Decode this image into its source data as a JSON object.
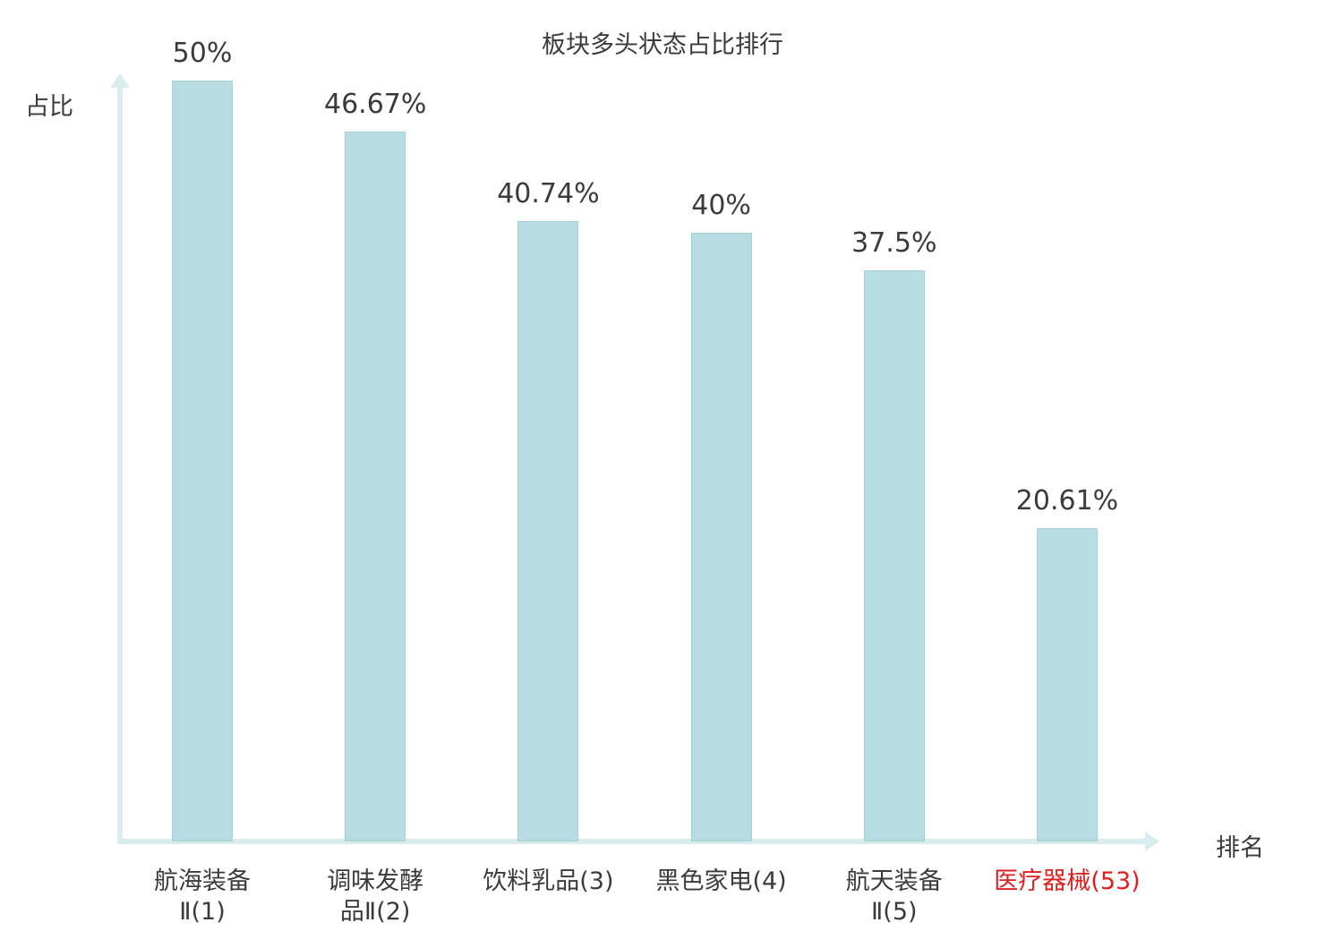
{
  "chart_data": {
    "type": "bar",
    "title": "板块多头状态占比排行",
    "ylabel": "占比",
    "xlabel": "排名",
    "categories": [
      "航海装备\nⅡ(1)",
      "调味发酵\n品Ⅱ(2)",
      "饮料乳品(3)",
      "黑色家电(4)",
      "航天装备\nⅡ(5)",
      "医疗器械(53)"
    ],
    "values": [
      50,
      46.67,
      40.74,
      40,
      37.5,
      20.61
    ],
    "value_labels": [
      "50%",
      "46.67%",
      "40.74%",
      "40%",
      "37.5%",
      "20.61%"
    ],
    "highlight_index": 5,
    "ylim": [
      0,
      50
    ],
    "grid": false,
    "legend": "none",
    "colors": {
      "bar": "#b7dde2",
      "bar_border": "#a3d1d8",
      "axis": "#d9edef",
      "text": "#3b3b3b",
      "highlight": "#e02020"
    }
  }
}
